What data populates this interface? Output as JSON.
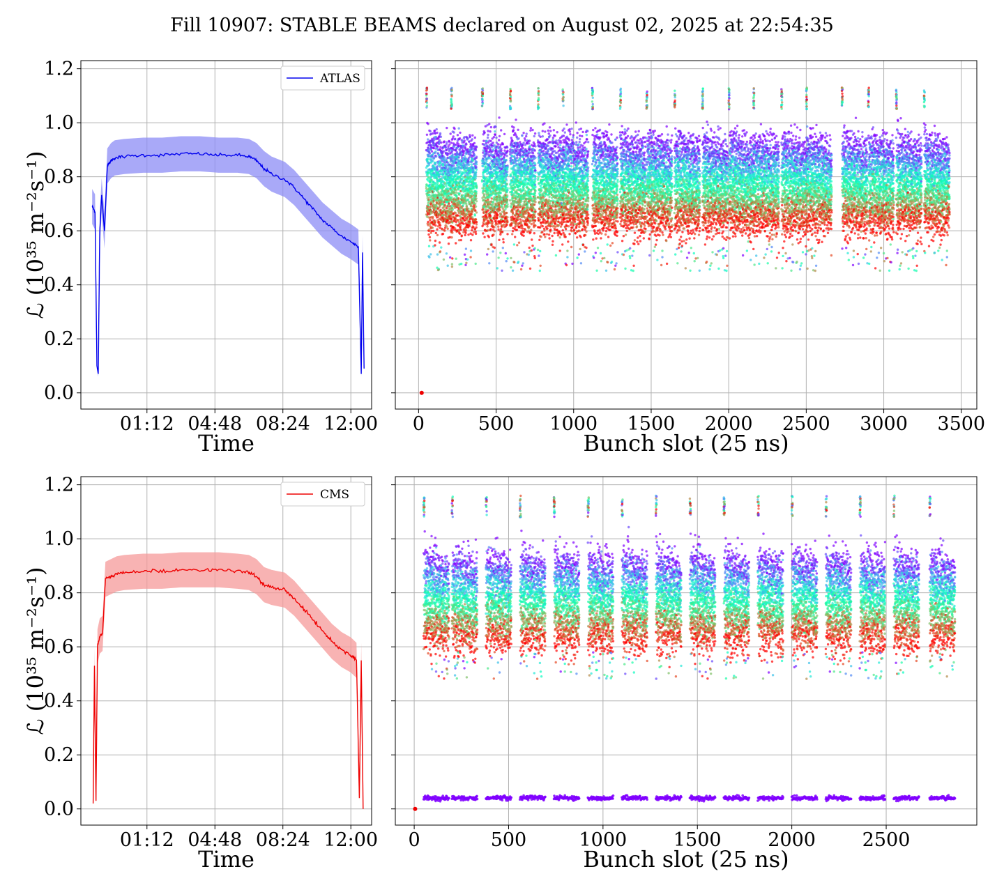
{
  "figure": {
    "suptitle": "Fill 10907: STABLE BEAMS declared on August 02, 2025 at 22:54:35"
  },
  "colors": {
    "atlas": "#0000ee",
    "atlas_band": "#8c8cf5",
    "cms": "#ee0000",
    "cms_band": "#f59a9a",
    "grid": "#b0b0b0"
  },
  "chart_data": [
    {
      "id": "atlas-time",
      "type": "line",
      "xlabel": "Time",
      "ylabel": "ℒ (10³⁵ m⁻²s⁻¹)",
      "x_units": "hours since first tick origin (22:00)",
      "xticks": [
        {
          "x": 3.2,
          "label": "01:12"
        },
        {
          "x": 6.8,
          "label": "04:48"
        },
        {
          "x": 10.4,
          "label": "08:24"
        },
        {
          "x": 14.0,
          "label": "12:00"
        }
      ],
      "xlim": [
        -0.3,
        15.1
      ],
      "ylim": [
        -0.06,
        1.23
      ],
      "yticks": [
        0.0,
        0.2,
        0.4,
        0.6,
        0.8,
        1.0,
        1.2
      ],
      "legend": {
        "label": "ATLAS",
        "position": "upper-right"
      },
      "grid": true,
      "series": [
        {
          "name": "ATLAS",
          "x": [
            0.3,
            0.45,
            0.55,
            0.62,
            0.7,
            0.8,
            0.95,
            1.1,
            1.3,
            1.5,
            2.0,
            3.0,
            4.0,
            5.0,
            6.0,
            7.0,
            8.0,
            8.6,
            9.0,
            9.4,
            9.8,
            10.5,
            11.0,
            11.5,
            12.0,
            12.5,
            13.0,
            13.5,
            14.0,
            14.4,
            14.55,
            14.62,
            14.7
          ],
          "y": [
            0.69,
            0.67,
            0.1,
            0.07,
            0.6,
            0.73,
            0.6,
            0.84,
            0.86,
            0.87,
            0.875,
            0.88,
            0.88,
            0.885,
            0.885,
            0.88,
            0.88,
            0.875,
            0.86,
            0.83,
            0.81,
            0.79,
            0.76,
            0.72,
            0.68,
            0.64,
            0.61,
            0.58,
            0.56,
            0.54,
            0.07,
            0.52,
            0.09
          ],
          "band_half_width": 0.065
        }
      ]
    },
    {
      "id": "atlas-bunch",
      "type": "scatter",
      "xlabel": "Bunch slot (25 ns)",
      "ylabel": "",
      "xlim": [
        -150,
        3600
      ],
      "ylim": [
        -0.06,
        1.23
      ],
      "xticks": [
        0,
        500,
        1000,
        1500,
        2000,
        2500,
        3000,
        3500
      ],
      "yticks": [
        0.0,
        0.2,
        0.4,
        0.6,
        0.8,
        1.0,
        1.2
      ],
      "grid": true,
      "trains_start": [
        50,
        210,
        410,
        590,
        770,
        930,
        1120,
        1300,
        1470,
        1650,
        1830,
        2000,
        2160,
        2340,
        2500,
        2730,
        2900,
        3080,
        3260
      ],
      "train_length": 165,
      "value_range": [
        0.45,
        1.13
      ],
      "outliers": [
        {
          "x": 20,
          "y": 0.0
        }
      ]
    },
    {
      "id": "cms-time",
      "type": "line",
      "xlabel": "Time",
      "ylabel": "ℒ (10³⁵ m⁻²s⁻¹)",
      "x_units": "hours since first tick origin (22:00)",
      "xticks": [
        {
          "x": 3.2,
          "label": "01:12"
        },
        {
          "x": 6.8,
          "label": "04:48"
        },
        {
          "x": 10.4,
          "label": "08:24"
        },
        {
          "x": 14.0,
          "label": "12:00"
        }
      ],
      "xlim": [
        -0.3,
        15.1
      ],
      "ylim": [
        -0.06,
        1.23
      ],
      "yticks": [
        0.0,
        0.2,
        0.4,
        0.6,
        0.8,
        1.0,
        1.2
      ],
      "legend": {
        "label": "CMS",
        "position": "upper-right"
      },
      "grid": true,
      "series": [
        {
          "name": "CMS",
          "x": [
            0.35,
            0.42,
            0.5,
            0.58,
            0.7,
            0.85,
            1.0,
            1.3,
            1.6,
            2.0,
            3.0,
            4.0,
            5.0,
            6.0,
            7.0,
            8.0,
            8.6,
            9.0,
            9.4,
            9.8,
            10.5,
            11.0,
            11.5,
            12.0,
            12.5,
            13.0,
            13.5,
            14.0,
            14.3,
            14.45,
            14.55,
            14.65
          ],
          "y": [
            0.02,
            0.53,
            0.03,
            0.6,
            0.64,
            0.65,
            0.85,
            0.86,
            0.87,
            0.875,
            0.88,
            0.88,
            0.885,
            0.885,
            0.885,
            0.88,
            0.875,
            0.86,
            0.83,
            0.82,
            0.81,
            0.78,
            0.74,
            0.7,
            0.66,
            0.62,
            0.59,
            0.57,
            0.55,
            0.04,
            0.55,
            0.0
          ],
          "band_half_width": 0.065
        }
      ]
    },
    {
      "id": "cms-bunch",
      "type": "scatter",
      "xlabel": "Bunch slot (25 ns)",
      "ylabel": "",
      "xlim": [
        -100,
        2980
      ],
      "ylim": [
        -0.06,
        1.23
      ],
      "xticks": [
        0,
        500,
        1000,
        1500,
        2000,
        2500
      ],
      "yticks": [
        0.0,
        0.2,
        0.4,
        0.6,
        0.8,
        1.0,
        1.2
      ],
      "grid": true,
      "trains_start": [
        50,
        200,
        380,
        560,
        740,
        920,
        1100,
        1280,
        1460,
        1640,
        1820,
        2000,
        2180,
        2360,
        2540,
        2730
      ],
      "train_length": 135,
      "value_range": [
        0.48,
        1.16
      ],
      "low_series_level": 0.04,
      "outliers": [
        {
          "x": 5,
          "y": 0.0
        }
      ]
    }
  ]
}
